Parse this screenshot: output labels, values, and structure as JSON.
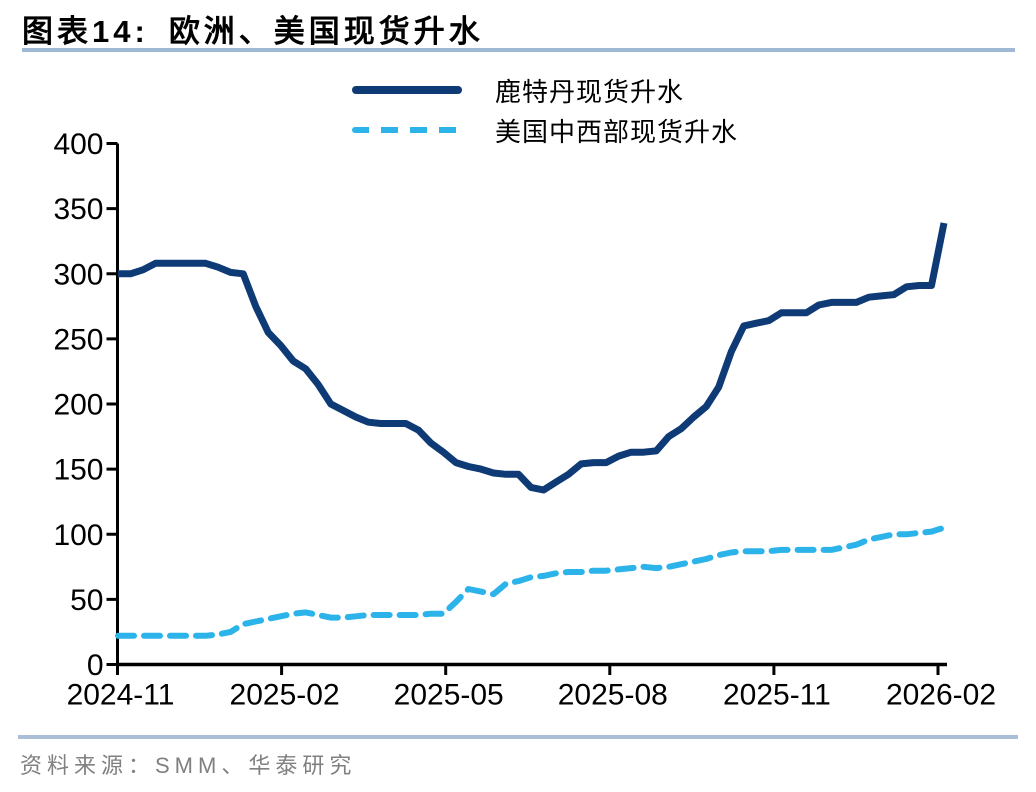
{
  "header": {
    "figure_label": "图表14:",
    "title": "欧洲、美国现货升水"
  },
  "legend": {
    "items": [
      {
        "label": "鹿特丹现货升水",
        "style": "solid",
        "color": "#0e3a75"
      },
      {
        "label": "美国中西部现货升水",
        "style": "dashed",
        "color": "#2bb3ea"
      }
    ]
  },
  "colors": {
    "rotterdam_line": "#0e3a75",
    "midwest_line": "#2bb3ea",
    "title_underline": "#9fb8d4",
    "footer_divider": "#aabfd6",
    "source_text": "#808080",
    "axis": "#000000"
  },
  "chart_data": {
    "type": "line",
    "title": "欧洲、美国现货升水",
    "xlabel": "",
    "ylabel": "",
    "ylim": [
      0,
      400
    ],
    "y_ticks": [
      0,
      50,
      100,
      150,
      200,
      250,
      300,
      350,
      400
    ],
    "x_tick_labels": [
      "2024-11",
      "2025-02",
      "2025-05",
      "2025-08",
      "2025-11",
      "2026-02"
    ],
    "x_unit": "weekly points from 2024-11 to 2026-02",
    "grid": false,
    "legend_position": "top-center",
    "series": [
      {
        "name": "鹿特丹现货升水",
        "style": "solid",
        "color": "#0e3a75",
        "values": [
          300,
          300,
          303,
          308,
          308,
          308,
          308,
          308,
          305,
          301,
          300,
          275,
          255,
          245,
          233,
          227,
          215,
          200,
          195,
          190,
          186,
          185,
          185,
          185,
          180,
          170,
          163,
          155,
          152,
          150,
          147,
          146,
          146,
          136,
          134,
          140,
          146,
          154,
          155,
          155,
          160,
          163,
          163,
          164,
          175,
          181,
          190,
          198,
          213,
          240,
          260,
          262,
          264,
          270,
          270,
          270,
          276,
          278,
          278,
          278,
          282,
          283,
          284,
          290,
          291,
          291,
          339
        ]
      },
      {
        "name": "美国中西部现货升水",
        "style": "dashed",
        "color": "#2bb3ea",
        "values": [
          22,
          22,
          22,
          22,
          22,
          22,
          22,
          22,
          23,
          25,
          31,
          33,
          35,
          37,
          39,
          40,
          38,
          36,
          36,
          37,
          38,
          38,
          38,
          38,
          38,
          39,
          39,
          48,
          58,
          56,
          54,
          62,
          64,
          67,
          68,
          70,
          71,
          71,
          72,
          72,
          73,
          74,
          75,
          74,
          75,
          77,
          79,
          81,
          84,
          86,
          87,
          87,
          87,
          88,
          88,
          88,
          88,
          88,
          90,
          92,
          96,
          98,
          100,
          100,
          101,
          102,
          105
        ]
      }
    ]
  },
  "footer": {
    "source": "资料来源：SMM、华泰研究"
  }
}
